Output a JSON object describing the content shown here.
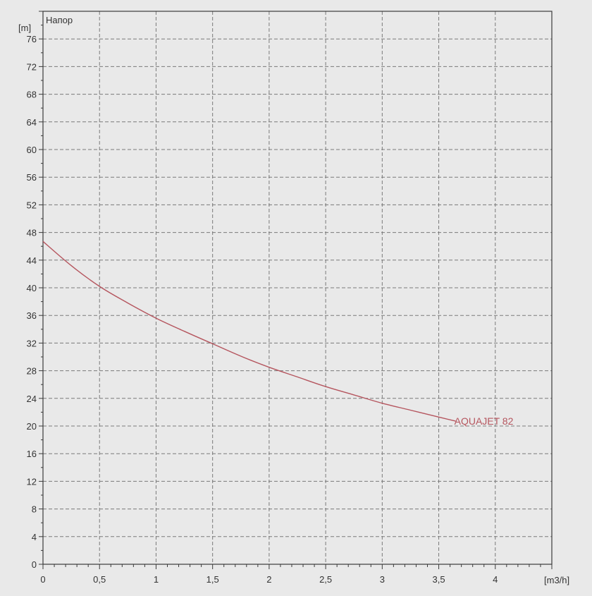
{
  "chart_data": {
    "type": "line",
    "title_label": "Напор",
    "ylabel": "[m]",
    "xlabel": "[m3/h]",
    "xlim": [
      0,
      4.5
    ],
    "ylim": [
      0,
      80
    ],
    "xticks": [
      0,
      0.5,
      1,
      1.5,
      2,
      2.5,
      3,
      3.5,
      4
    ],
    "xtick_labels": [
      "0",
      "0,5",
      "1",
      "1,5",
      "2",
      "2,5",
      "3",
      "3,5",
      "4"
    ],
    "yticks": [
      0,
      4,
      8,
      12,
      16,
      20,
      24,
      28,
      32,
      36,
      40,
      44,
      48,
      52,
      56,
      60,
      64,
      68,
      72,
      76
    ],
    "ytick_labels": [
      "0",
      "4",
      "8",
      "12",
      "16",
      "20",
      "24",
      "28",
      "32",
      "36",
      "40",
      "44",
      "48",
      "52",
      "56",
      "60",
      "64",
      "68",
      "72",
      "76"
    ],
    "grid": true,
    "series": [
      {
        "name": "AQUAJET 82",
        "color": "#b5555e",
        "x": [
          0,
          0.25,
          0.5,
          0.75,
          1,
          1.25,
          1.5,
          1.75,
          2,
          2.25,
          2.5,
          2.75,
          3,
          3.25,
          3.5,
          3.65
        ],
        "y": [
          46.7,
          43.2,
          40.2,
          37.8,
          35.6,
          33.7,
          31.9,
          30.1,
          28.5,
          27.1,
          25.7,
          24.5,
          23.3,
          22.3,
          21.3,
          20.7
        ]
      }
    ]
  },
  "colors": {
    "background": "#e9e9e9",
    "plot_background": "#e9e9e9",
    "grid": "#7a7a7a",
    "axis": "#3a3a3a",
    "text": "#333333"
  }
}
